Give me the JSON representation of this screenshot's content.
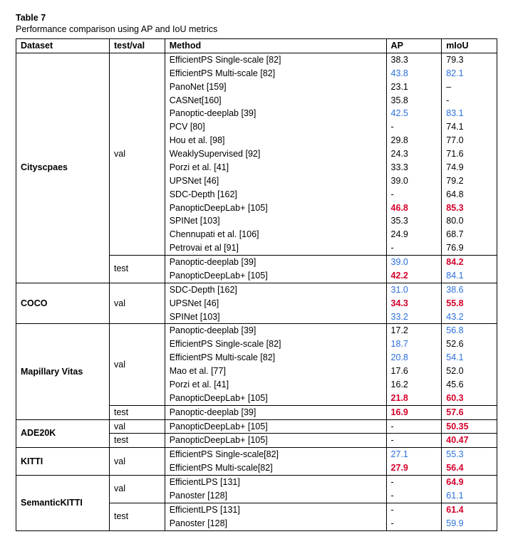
{
  "caption": {
    "number": "Table 7",
    "title": "Performance comparison using AP and IoU metrics"
  },
  "headers": [
    "Dataset",
    "test/val",
    "Method",
    "AP",
    "mIoU"
  ],
  "sections": [
    {
      "dataset": "Cityscpaes",
      "splits": [
        {
          "name": "val",
          "rows": [
            {
              "m": "EfficientPS Single-scale [82]",
              "ap": {
                "t": "38.3"
              },
              "miou": {
                "t": "79.3"
              }
            },
            {
              "m": "EfficientPS Multi-scale [82]",
              "ap": {
                "t": "43.8",
                "c": "blue"
              },
              "miou": {
                "t": "82.1",
                "c": "blue"
              }
            },
            {
              "m": "PanoNet [159]",
              "ap": {
                "t": "23.1"
              },
              "miou": {
                "t": "–"
              }
            },
            {
              "m": "CASNet[160]",
              "ap": {
                "t": "35.8"
              },
              "miou": {
                "t": "-"
              }
            },
            {
              "m": "Panoptic-deeplab [39]",
              "ap": {
                "t": "42.5",
                "c": "blue"
              },
              "miou": {
                "t": "83.1",
                "c": "blue"
              }
            },
            {
              "m": "PCV [80]",
              "ap": {
                "t": "-"
              },
              "miou": {
                "t": "74.1"
              }
            },
            {
              "m": "Hou et al. [98]",
              "ap": {
                "t": "29.8"
              },
              "miou": {
                "t": "77.0"
              }
            },
            {
              "m": "WeaklySupervised [92]",
              "ap": {
                "t": "24.3"
              },
              "miou": {
                "t": "71.6"
              }
            },
            {
              "m": "Porzi et al. [41]",
              "ap": {
                "t": "33.3"
              },
              "miou": {
                "t": "74.9"
              }
            },
            {
              "m": "UPSNet [46]",
              "ap": {
                "t": "39.0"
              },
              "miou": {
                "t": "79.2"
              }
            },
            {
              "m": "SDC-Depth [162]",
              "ap": {
                "t": "-"
              },
              "miou": {
                "t": "64.8"
              }
            },
            {
              "m": "PanopticDeepLab+ [105]",
              "ap": {
                "t": "46.8",
                "c": "red"
              },
              "miou": {
                "t": "85.3",
                "c": "red"
              }
            },
            {
              "m": "SPINet [103]",
              "ap": {
                "t": "35.3"
              },
              "miou": {
                "t": "80.0"
              }
            },
            {
              "m": "Chennupati et al. [106]",
              "ap": {
                "t": "24.9"
              },
              "miou": {
                "t": "68.7"
              }
            },
            {
              "m": "Petrovai et al [91]",
              "ap": {
                "t": "-"
              },
              "miou": {
                "t": "76.9"
              }
            }
          ]
        },
        {
          "name": "test",
          "rows": [
            {
              "m": "Panoptic-deeplab [39]",
              "ap": {
                "t": "39.0",
                "c": "blue"
              },
              "miou": {
                "t": "84.2",
                "c": "red"
              }
            },
            {
              "m": "PanopticDeepLab+ [105]",
              "ap": {
                "t": "42.2",
                "c": "red"
              },
              "miou": {
                "t": "84.1",
                "c": "blue"
              }
            }
          ]
        }
      ]
    },
    {
      "dataset": "COCO",
      "splits": [
        {
          "name": "val",
          "rows": [
            {
              "m": "SDC-Depth [162]",
              "ap": {
                "t": "31.0",
                "c": "blue"
              },
              "miou": {
                "t": "38.6",
                "c": "blue"
              }
            },
            {
              "m": "UPSNet [46]",
              "ap": {
                "t": "34.3",
                "c": "red"
              },
              "miou": {
                "t": "55.8",
                "c": "red"
              }
            },
            {
              "m": "SPINet [103]",
              "ap": {
                "t": "33.2",
                "c": "blue"
              },
              "miou": {
                "t": "43.2",
                "c": "blue"
              }
            }
          ]
        }
      ]
    },
    {
      "dataset": "Mapillary Vitas",
      "splits": [
        {
          "name": "val",
          "rows": [
            {
              "m": "Panoptic-deeplab [39]",
              "ap": {
                "t": "17.2"
              },
              "miou": {
                "t": "56.8",
                "c": "blue"
              }
            },
            {
              "m": "EfficientPS Single-scale [82]",
              "ap": {
                "t": "18.7",
                "c": "blue"
              },
              "miou": {
                "t": "52.6"
              }
            },
            {
              "m": "EfficientPS Multi-scale [82]",
              "ap": {
                "t": "20.8",
                "c": "blue"
              },
              "miou": {
                "t": "54.1",
                "c": "blue"
              }
            },
            {
              "m": "Mao et al. [77]",
              "ap": {
                "t": "17.6"
              },
              "miou": {
                "t": "52.0"
              }
            },
            {
              "m": "Porzi et al. [41]",
              "ap": {
                "t": "16.2"
              },
              "miou": {
                "t": "45.6"
              }
            },
            {
              "m": "PanopticDeepLab+ [105]",
              "ap": {
                "t": "21.8",
                "c": "red"
              },
              "miou": {
                "t": "60.3",
                "c": "red"
              }
            }
          ]
        },
        {
          "name": "test",
          "rows": [
            {
              "m": "Panoptic-deeplab [39]",
              "ap": {
                "t": "16.9",
                "c": "red"
              },
              "miou": {
                "t": "57.6",
                "c": "red"
              }
            }
          ]
        }
      ]
    },
    {
      "dataset": "ADE20K",
      "splits": [
        {
          "name": "val",
          "rows": [
            {
              "m": "PanopticDeepLab+ [105]",
              "ap": {
                "t": "-"
              },
              "miou": {
                "t": "50.35",
                "c": "red"
              }
            }
          ]
        },
        {
          "name": "test",
          "rows": [
            {
              "m": "PanopticDeepLab+ [105]",
              "ap": {
                "t": "-"
              },
              "miou": {
                "t": "40.47",
                "c": "red"
              }
            }
          ]
        }
      ]
    },
    {
      "dataset": "KITTI",
      "splits": [
        {
          "name": "val",
          "rows": [
            {
              "m": "EfficientPS Single-scale[82]",
              "ap": {
                "t": "27.1",
                "c": "blue"
              },
              "miou": {
                "t": "55.3",
                "c": "blue"
              }
            },
            {
              "m": "EfficientPS Multi-scale[82]",
              "ap": {
                "t": "27.9",
                "c": "red"
              },
              "miou": {
                "t": "56.4",
                "c": "red"
              }
            }
          ]
        }
      ]
    },
    {
      "dataset": "SemanticKITTI",
      "splits": [
        {
          "name": "val",
          "rows": [
            {
              "m": "EfficientLPS [131]",
              "ap": {
                "t": "-"
              },
              "miou": {
                "t": "64.9",
                "c": "red"
              }
            },
            {
              "m": "Panoster [128]",
              "ap": {
                "t": "-"
              },
              "miou": {
                "t": "61.1",
                "c": "blue"
              }
            }
          ]
        },
        {
          "name": "test",
          "rows": [
            {
              "m": "EfficientLPS [131]",
              "ap": {
                "t": "-"
              },
              "miou": {
                "t": "61.4",
                "c": "red"
              }
            },
            {
              "m": "Panoster [128]",
              "ap": {
                "t": "-"
              },
              "miou": {
                "t": "59.9",
                "c": "blue"
              }
            }
          ]
        }
      ]
    }
  ]
}
